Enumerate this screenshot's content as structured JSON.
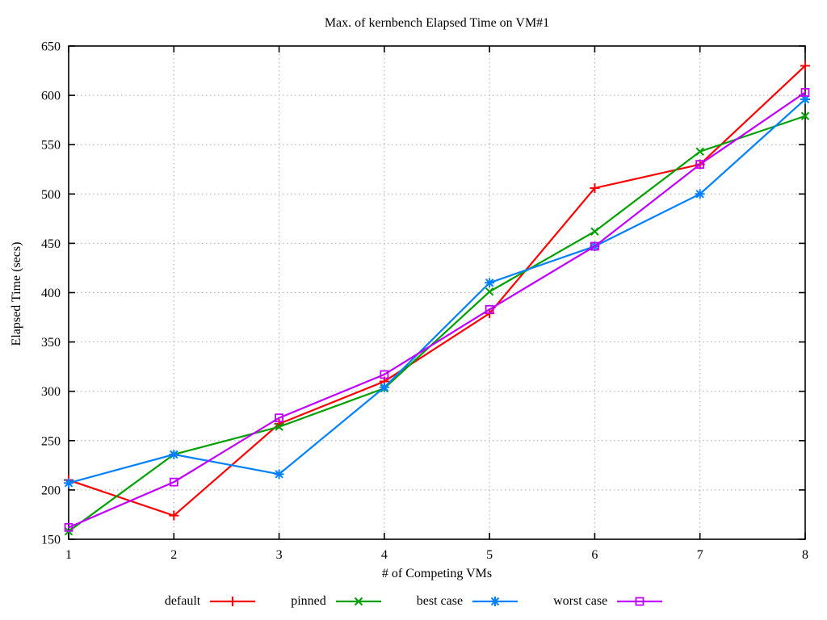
{
  "chart_data": {
    "type": "line",
    "title": "Max. of kernbench Elapsed Time on VM#1",
    "xlabel": "# of Competing VMs",
    "ylabel": "Elapsed Time (secs)",
    "x": [
      1,
      2,
      3,
      4,
      5,
      6,
      7,
      8
    ],
    "xlim": [
      1,
      8
    ],
    "ylim": [
      150,
      650
    ],
    "xticks": [
      1,
      2,
      3,
      4,
      5,
      6,
      7,
      8
    ],
    "yticks": [
      150,
      200,
      250,
      300,
      350,
      400,
      450,
      500,
      550,
      600,
      650
    ],
    "grid": true,
    "grid_color": "#a8a8a8",
    "axis_color": "#000000",
    "background": "#ffffff",
    "legend_position": "bottom-center",
    "series": [
      {
        "name": "default",
        "color": "#ff0000",
        "marker": "plus",
        "values": [
          210,
          174,
          267,
          310,
          379,
          506,
          530,
          630
        ]
      },
      {
        "name": "pinned",
        "color": "#00a000",
        "marker": "times",
        "values": [
          158,
          236,
          264,
          303,
          401,
          462,
          543,
          579
        ]
      },
      {
        "name": "best case",
        "color": "#0080ff",
        "marker": "asterisk",
        "values": [
          207,
          236,
          216,
          304,
          410,
          447,
          500,
          596
        ]
      },
      {
        "name": "worst case",
        "color": "#c000ff",
        "marker": "square",
        "values": [
          162,
          208,
          273,
          317,
          383,
          447,
          530,
          603
        ]
      }
    ]
  }
}
